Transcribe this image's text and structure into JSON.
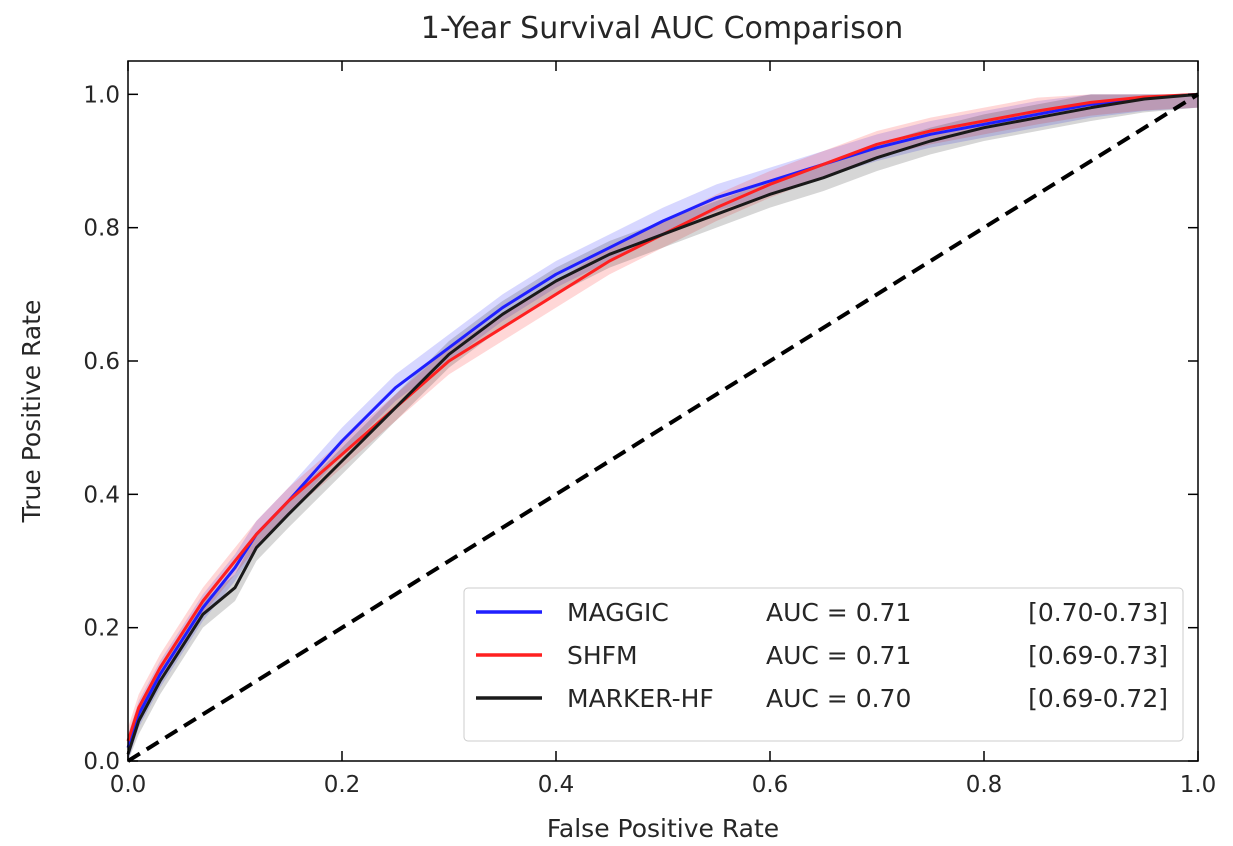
{
  "chart_data": {
    "type": "line",
    "title": "1-Year Survival AUC Comparison",
    "xlabel": "False Positive Rate",
    "ylabel": "True Positive Rate",
    "xlim": [
      0.0,
      1.0
    ],
    "ylim": [
      0.0,
      1.05
    ],
    "xticks": [
      "0.0",
      "0.2",
      "0.4",
      "0.6",
      "0.8",
      "1.0"
    ],
    "yticks": [
      "0.0",
      "0.2",
      "0.4",
      "0.6",
      "0.8",
      "1.0"
    ],
    "grid": false,
    "legend_position": "bottom-right",
    "series": [
      {
        "name": "MAGGIC",
        "auc_label": "AUC = 0.71",
        "ci_label": "[0.70-0.73]",
        "color": "#1f1fff",
        "x": [
          0.0,
          0.01,
          0.03,
          0.05,
          0.07,
          0.1,
          0.12,
          0.15,
          0.2,
          0.25,
          0.3,
          0.35,
          0.4,
          0.45,
          0.5,
          0.55,
          0.6,
          0.65,
          0.7,
          0.75,
          0.8,
          0.85,
          0.9,
          0.95,
          1.0
        ],
        "y": [
          0.02,
          0.07,
          0.13,
          0.18,
          0.23,
          0.29,
          0.34,
          0.39,
          0.48,
          0.56,
          0.62,
          0.68,
          0.73,
          0.77,
          0.81,
          0.845,
          0.87,
          0.895,
          0.92,
          0.94,
          0.955,
          0.97,
          0.985,
          0.995,
          1.0
        ],
        "band": 0.02
      },
      {
        "name": "SHFM",
        "auc_label": "AUC = 0.71",
        "ci_label": "[0.69-0.73]",
        "color": "#ff2020",
        "x": [
          0.0,
          0.01,
          0.03,
          0.05,
          0.07,
          0.1,
          0.12,
          0.15,
          0.2,
          0.25,
          0.3,
          0.35,
          0.4,
          0.45,
          0.5,
          0.55,
          0.6,
          0.65,
          0.7,
          0.75,
          0.8,
          0.85,
          0.9,
          0.95,
          1.0
        ],
        "y": [
          0.03,
          0.08,
          0.14,
          0.19,
          0.24,
          0.3,
          0.34,
          0.39,
          0.46,
          0.53,
          0.6,
          0.65,
          0.7,
          0.75,
          0.79,
          0.83,
          0.865,
          0.895,
          0.925,
          0.945,
          0.96,
          0.975,
          0.988,
          0.996,
          1.0
        ],
        "band": 0.02
      },
      {
        "name": "MARKER-HF",
        "auc_label": "AUC = 0.70",
        "ci_label": "[0.69-0.72]",
        "color": "#1a1a1a",
        "x": [
          0.0,
          0.01,
          0.03,
          0.05,
          0.07,
          0.1,
          0.12,
          0.15,
          0.2,
          0.25,
          0.3,
          0.35,
          0.4,
          0.45,
          0.5,
          0.55,
          0.6,
          0.65,
          0.7,
          0.75,
          0.8,
          0.85,
          0.9,
          0.95,
          1.0
        ],
        "y": [
          0.01,
          0.06,
          0.12,
          0.17,
          0.22,
          0.26,
          0.32,
          0.37,
          0.45,
          0.53,
          0.61,
          0.67,
          0.72,
          0.76,
          0.79,
          0.82,
          0.85,
          0.875,
          0.905,
          0.93,
          0.95,
          0.965,
          0.98,
          0.993,
          1.0
        ],
        "band": 0.02
      },
      {
        "name": "",
        "color": "#000000",
        "x": [
          0.0,
          1.0
        ],
        "y": [
          0.0,
          1.0
        ],
        "dashed": true
      }
    ]
  }
}
